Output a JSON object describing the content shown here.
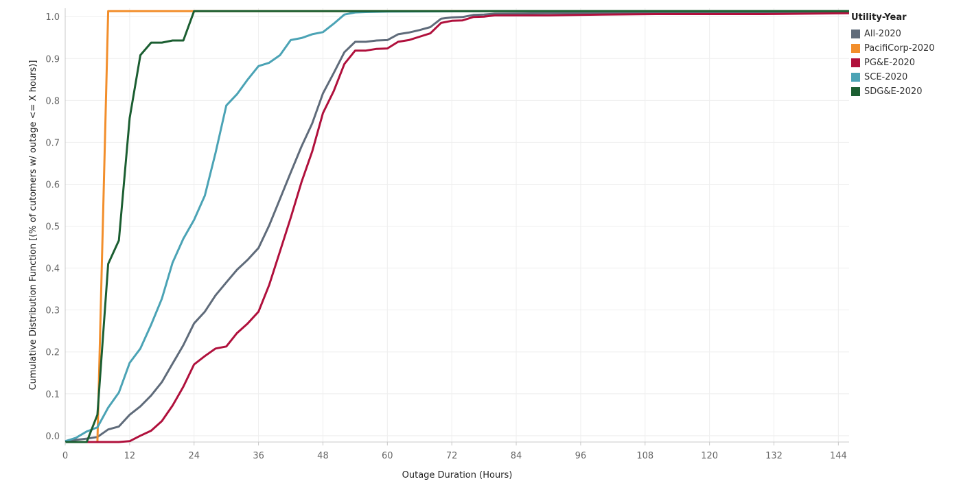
{
  "chart_data": {
    "type": "line",
    "xlabel": "Outage Duration (Hours)",
    "ylabel": "Cumulative Distribution Function [(% of cutomers w/ outage <= X hours)]",
    "xlim": [
      0,
      146
    ],
    "ylim": [
      -0.015,
      1.02
    ],
    "xticks": [
      0,
      12,
      24,
      36,
      48,
      60,
      72,
      84,
      96,
      108,
      120,
      132,
      144
    ],
    "yticks": [
      0.0,
      0.1,
      0.2,
      0.3,
      0.4,
      0.5,
      0.6,
      0.7,
      0.8,
      0.9,
      1.0
    ],
    "ytick_labels": [
      "0.0",
      "0.1",
      "0.2",
      "0.3",
      "0.4",
      "0.5",
      "0.6",
      "0.7",
      "0.8",
      "0.9",
      "1.0"
    ],
    "grid": true,
    "legend_title": "Utility-Year",
    "legend_position": "right",
    "series": [
      {
        "name": "All-2020",
        "color": "#5f6b7a",
        "x": [
          0,
          2,
          4,
          6,
          8,
          10,
          12,
          14,
          16,
          18,
          20,
          22,
          24,
          26,
          28,
          30,
          32,
          34,
          36,
          38,
          40,
          42,
          44,
          46,
          48,
          50,
          52,
          54,
          56,
          58,
          60,
          62,
          64,
          66,
          68,
          70,
          72,
          74,
          76,
          78,
          80,
          90,
          100,
          110,
          120,
          130,
          146
        ],
        "y": [
          -0.013,
          -0.01,
          -0.007,
          -0.003,
          0.015,
          0.022,
          0.05,
          0.07,
          0.096,
          0.128,
          0.172,
          0.216,
          0.268,
          0.296,
          0.335,
          0.366,
          0.396,
          0.42,
          0.448,
          0.502,
          0.565,
          0.628,
          0.69,
          0.745,
          0.817,
          0.865,
          0.915,
          0.94,
          0.94,
          0.943,
          0.944,
          0.958,
          0.962,
          0.968,
          0.975,
          0.995,
          0.998,
          0.999,
          1.004,
          1.005,
          1.007,
          1.008,
          1.008,
          1.009,
          1.009,
          1.01,
          1.011
        ]
      },
      {
        "name": "PacifiCorp-2020",
        "color": "#f28e2b",
        "x": [
          0,
          6,
          8,
          146
        ],
        "y": [
          -0.015,
          -0.015,
          1.013,
          1.013
        ]
      },
      {
        "name": "PG&E-2020",
        "color": "#b0103c",
        "x": [
          0,
          2,
          4,
          6,
          8,
          10,
          12,
          14,
          16,
          18,
          20,
          22,
          24,
          26,
          28,
          30,
          32,
          34,
          36,
          38,
          40,
          42,
          44,
          46,
          48,
          50,
          52,
          54,
          56,
          58,
          60,
          62,
          64,
          66,
          68,
          70,
          72,
          74,
          76,
          78,
          80,
          90,
          100,
          110,
          120,
          130,
          146
        ],
        "y": [
          -0.015,
          -0.015,
          -0.015,
          -0.015,
          -0.015,
          -0.015,
          -0.013,
          0.0,
          0.012,
          0.035,
          0.072,
          0.117,
          0.17,
          0.19,
          0.208,
          0.213,
          0.245,
          0.268,
          0.296,
          0.36,
          0.44,
          0.52,
          0.605,
          0.678,
          0.77,
          0.822,
          0.887,
          0.919,
          0.919,
          0.923,
          0.924,
          0.94,
          0.944,
          0.952,
          0.96,
          0.985,
          0.99,
          0.991,
          0.999,
          1.0,
          1.003,
          1.003,
          1.005,
          1.006,
          1.006,
          1.006,
          1.008
        ]
      },
      {
        "name": "SCE-2020",
        "color": "#4ba3b5",
        "x": [
          0,
          2,
          4,
          6,
          8,
          10,
          12,
          14,
          16,
          18,
          20,
          22,
          24,
          26,
          28,
          30,
          32,
          34,
          36,
          38,
          40,
          42,
          44,
          46,
          48,
          50,
          52,
          54,
          56,
          60,
          80,
          146
        ],
        "y": [
          -0.013,
          -0.005,
          0.01,
          0.02,
          0.067,
          0.103,
          0.174,
          0.208,
          0.265,
          0.327,
          0.413,
          0.47,
          0.515,
          0.573,
          0.675,
          0.788,
          0.815,
          0.85,
          0.882,
          0.89,
          0.908,
          0.944,
          0.949,
          0.958,
          0.963,
          0.983,
          1.005,
          1.01,
          1.011,
          1.012,
          1.013,
          1.013
        ]
      },
      {
        "name": "SDG&E-2020",
        "color": "#1b5e31",
        "x": [
          0,
          2,
          4,
          6,
          8,
          10,
          12,
          14,
          16,
          18,
          20,
          22,
          24,
          146
        ],
        "y": [
          -0.015,
          -0.015,
          -0.015,
          0.05,
          0.41,
          0.466,
          0.758,
          0.908,
          0.938,
          0.938,
          0.943,
          0.943,
          1.013,
          1.013
        ]
      }
    ]
  }
}
